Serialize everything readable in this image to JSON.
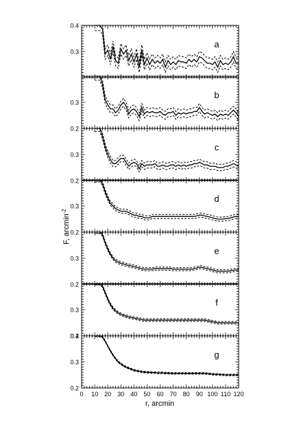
{
  "figure": {
    "ylabel": "F, arcmin",
    "ylabel_exp": "-2",
    "xlabel": "r, arcmin"
  },
  "chart_data": {
    "type": "line",
    "layout": "7 vertically stacked panels sharing the x axis",
    "xlim": [
      0,
      120
    ],
    "x_ticks": [
      0,
      10,
      20,
      30,
      40,
      50,
      60,
      70,
      80,
      90,
      100,
      110,
      120
    ],
    "xlabel": "r, arcmin",
    "ylabel": "F, arcmin^-2",
    "x": [
      10,
      12,
      14,
      16,
      18,
      20,
      22,
      24,
      26,
      28,
      30,
      32,
      34,
      36,
      38,
      40,
      42,
      44,
      46,
      48,
      50,
      52,
      54,
      56,
      58,
      60,
      62,
      64,
      66,
      68,
      70,
      72,
      74,
      76,
      78,
      80,
      82,
      84,
      86,
      88,
      90,
      92,
      94,
      96,
      98,
      100,
      102,
      104,
      106,
      108,
      110,
      112,
      114,
      116,
      118,
      120
    ],
    "series_style": "solid central curve with dashed upper and lower envelopes",
    "panels": [
      {
        "label": "a",
        "ylim": [
          0.2,
          0.4
        ],
        "y_ticks": [
          0.2,
          0.3,
          0.4
        ],
        "y_tick_labels": [
          "",
          "0.3",
          "0.4"
        ],
        "values": [
          0.4,
          0.4,
          0.4,
          0.385,
          0.29,
          0.305,
          0.27,
          0.32,
          0.265,
          0.255,
          0.31,
          0.29,
          0.305,
          0.265,
          0.29,
          0.26,
          0.29,
          0.24,
          0.305,
          0.25,
          0.275,
          0.25,
          0.27,
          0.255,
          0.265,
          0.255,
          0.27,
          0.24,
          0.265,
          0.25,
          0.26,
          0.25,
          0.265,
          0.26,
          0.26,
          0.255,
          0.27,
          0.26,
          0.27,
          0.26,
          0.28,
          0.275,
          0.265,
          0.255,
          0.255,
          0.25,
          0.26,
          0.24,
          0.265,
          0.25,
          0.255,
          0.25,
          0.26,
          0.28,
          0.255,
          0.255
        ],
        "band": 0.02
      },
      {
        "label": "b",
        "ylim": [
          0.2,
          0.4
        ],
        "y_ticks": [
          0.2,
          0.3,
          0.4
        ],
        "y_tick_labels": [
          "0.2",
          "0.3",
          ""
        ],
        "values": [
          0.4,
          0.4,
          0.4,
          0.37,
          0.31,
          0.29,
          0.275,
          0.275,
          0.26,
          0.27,
          0.29,
          0.3,
          0.285,
          0.255,
          0.27,
          0.275,
          0.265,
          0.245,
          0.28,
          0.255,
          0.265,
          0.26,
          0.265,
          0.26,
          0.26,
          0.265,
          0.255,
          0.25,
          0.26,
          0.26,
          0.265,
          0.25,
          0.26,
          0.255,
          0.26,
          0.255,
          0.26,
          0.26,
          0.265,
          0.265,
          0.28,
          0.265,
          0.255,
          0.26,
          0.255,
          0.25,
          0.255,
          0.245,
          0.255,
          0.25,
          0.255,
          0.25,
          0.26,
          0.27,
          0.26,
          0.245
        ],
        "band": 0.015
      },
      {
        "label": "c",
        "ylim": [
          0.2,
          0.4
        ],
        "y_ticks": [
          0.2,
          0.3,
          0.4
        ],
        "y_tick_labels": [
          "0.2",
          "0.3",
          ""
        ],
        "values": [
          0.4,
          0.4,
          0.4,
          0.37,
          0.33,
          0.3,
          0.28,
          0.265,
          0.265,
          0.275,
          0.285,
          0.285,
          0.27,
          0.255,
          0.265,
          0.27,
          0.265,
          0.245,
          0.265,
          0.255,
          0.26,
          0.26,
          0.26,
          0.265,
          0.255,
          0.255,
          0.26,
          0.255,
          0.255,
          0.26,
          0.26,
          0.255,
          0.26,
          0.255,
          0.26,
          0.255,
          0.26,
          0.26,
          0.265,
          0.265,
          0.27,
          0.265,
          0.26,
          0.26,
          0.255,
          0.255,
          0.255,
          0.25,
          0.25,
          0.25,
          0.255,
          0.255,
          0.26,
          0.265,
          0.26,
          0.255
        ],
        "band": 0.012
      },
      {
        "label": "d",
        "ylim": [
          0.2,
          0.4
        ],
        "y_ticks": [
          0.2,
          0.3,
          0.4
        ],
        "y_tick_labels": [
          "0.2",
          "0.3",
          ""
        ],
        "values": [
          0.4,
          0.4,
          0.4,
          0.385,
          0.355,
          0.33,
          0.31,
          0.3,
          0.29,
          0.285,
          0.28,
          0.28,
          0.28,
          0.275,
          0.27,
          0.265,
          0.265,
          0.26,
          0.26,
          0.255,
          0.255,
          0.255,
          0.26,
          0.26,
          0.26,
          0.26,
          0.26,
          0.26,
          0.26,
          0.26,
          0.26,
          0.26,
          0.26,
          0.26,
          0.26,
          0.26,
          0.26,
          0.26,
          0.26,
          0.262,
          0.265,
          0.265,
          0.262,
          0.26,
          0.258,
          0.255,
          0.252,
          0.25,
          0.25,
          0.25,
          0.252,
          0.252,
          0.255,
          0.258,
          0.26,
          0.258
        ],
        "band": 0.008
      },
      {
        "label": "e",
        "ylim": [
          0.2,
          0.4
        ],
        "y_ticks": [
          0.2,
          0.3,
          0.4
        ],
        "y_tick_labels": [
          "0.2",
          "0.3",
          ""
        ],
        "values": [
          0.4,
          0.4,
          0.4,
          0.39,
          0.36,
          0.335,
          0.315,
          0.3,
          0.29,
          0.285,
          0.28,
          0.278,
          0.275,
          0.272,
          0.27,
          0.268,
          0.265,
          0.262,
          0.26,
          0.258,
          0.258,
          0.258,
          0.258,
          0.26,
          0.26,
          0.26,
          0.26,
          0.26,
          0.26,
          0.26,
          0.258,
          0.258,
          0.258,
          0.258,
          0.258,
          0.258,
          0.258,
          0.258,
          0.26,
          0.262,
          0.265,
          0.265,
          0.262,
          0.26,
          0.258,
          0.255,
          0.252,
          0.25,
          0.25,
          0.25,
          0.25,
          0.25,
          0.252,
          0.254,
          0.255,
          0.255
        ],
        "band": 0.006
      },
      {
        "label": "f",
        "ylim": [
          0.2,
          0.4
        ],
        "y_ticks": [
          0.2,
          0.3,
          0.4
        ],
        "y_tick_labels": [
          "0.2",
          "0.3",
          ""
        ],
        "values": [
          0.4,
          0.4,
          0.4,
          0.39,
          0.365,
          0.34,
          0.32,
          0.305,
          0.295,
          0.288,
          0.282,
          0.278,
          0.275,
          0.272,
          0.27,
          0.268,
          0.266,
          0.264,
          0.262,
          0.26,
          0.26,
          0.26,
          0.26,
          0.26,
          0.26,
          0.26,
          0.26,
          0.26,
          0.26,
          0.26,
          0.26,
          0.26,
          0.26,
          0.26,
          0.26,
          0.26,
          0.26,
          0.26,
          0.26,
          0.26,
          0.26,
          0.26,
          0.26,
          0.258,
          0.256,
          0.254,
          0.252,
          0.25,
          0.25,
          0.25,
          0.25,
          0.25,
          0.25,
          0.25,
          0.25,
          0.25
        ],
        "band": 0.005
      },
      {
        "label": "g",
        "ylim": [
          0.2,
          0.4
        ],
        "y_ticks": [
          0.2,
          0.3,
          0.4
        ],
        "y_tick_labels": [
          "0.2",
          "0.3",
          "0.4"
        ],
        "values": [
          0.4,
          0.4,
          0.4,
          0.395,
          0.38,
          0.36,
          0.342,
          0.326,
          0.312,
          0.3,
          0.292,
          0.285,
          0.28,
          0.276,
          0.272,
          0.268,
          0.266,
          0.264,
          0.262,
          0.261,
          0.26,
          0.26,
          0.259,
          0.259,
          0.258,
          0.258,
          0.258,
          0.257,
          0.257,
          0.256,
          0.256,
          0.256,
          0.256,
          0.256,
          0.256,
          0.256,
          0.256,
          0.256,
          0.256,
          0.256,
          0.256,
          0.256,
          0.256,
          0.255,
          0.254,
          0.253,
          0.252,
          0.252,
          0.251,
          0.251,
          0.25,
          0.25,
          0.25,
          0.25,
          0.25,
          0.25
        ],
        "band": 0.003
      }
    ],
    "grid": false,
    "legend": "none"
  }
}
